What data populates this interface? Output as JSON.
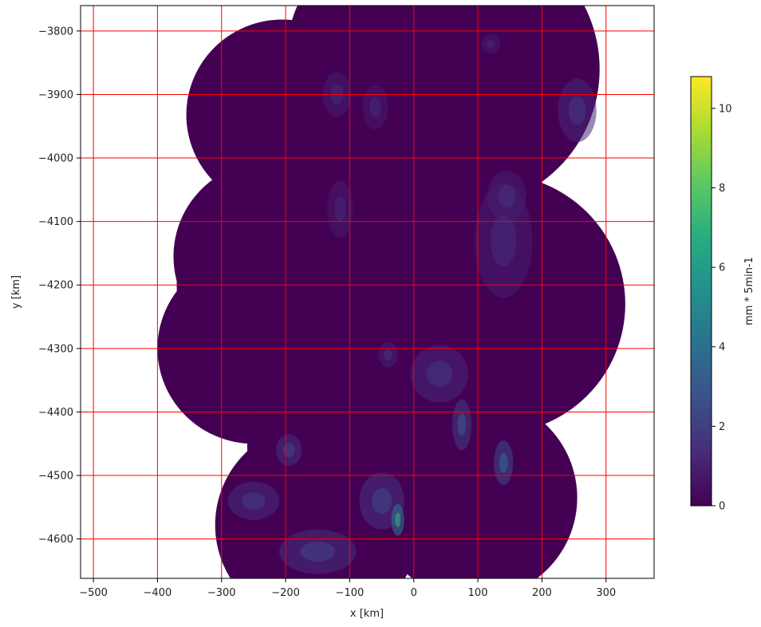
{
  "chart_data": {
    "type": "heatmap",
    "title": "",
    "xlabel": "x [km]",
    "ylabel": "y [km]",
    "xlim": [
      -520,
      375
    ],
    "ylim": [
      -4662,
      -3760
    ],
    "xticks": [
      -500,
      -400,
      -300,
      -200,
      -100,
      0,
      100,
      200,
      300
    ],
    "yticks": [
      -3800,
      -3900,
      -4000,
      -4100,
      -4200,
      -4300,
      -4400,
      -4500,
      -4600
    ],
    "grid": true,
    "grid_color": "#ff0000",
    "colormap": "viridis",
    "background_value_color": "#440154",
    "nodata_color": "#ffffff",
    "colorbar": {
      "label": "mm * 5min-1",
      "vmin": 0,
      "vmax": 10.8,
      "ticks": [
        0,
        2,
        4,
        6,
        8,
        10
      ],
      "placement": "right"
    },
    "coverage_circles": [
      {
        "cx": -205,
        "cy": -3932,
        "r": 150
      },
      {
        "cx": -225,
        "cy": -4155,
        "r": 150
      },
      {
        "cx": -250,
        "cy": -4300,
        "r": 150
      },
      {
        "cx": -150,
        "cy": -4578,
        "r": 160
      },
      {
        "cx": 95,
        "cy": -4535,
        "r": 160
      },
      {
        "cx": 125,
        "cy": -4230,
        "r": 205
      },
      {
        "cx": 70,
        "cy": -3860,
        "r": 220
      },
      {
        "cx": -55,
        "cy": -3820,
        "r": 140
      },
      {
        "cx": 5,
        "cy": -4280,
        "r": 200
      },
      {
        "cx": -150,
        "cy": -4200,
        "r": 220
      },
      {
        "cx": -60,
        "cy": -4450,
        "r": 200
      }
    ],
    "precip_patches": [
      {
        "x": -120,
        "y": -3900,
        "rx": 22,
        "ry": 35,
        "v": 0.9
      },
      {
        "x": -60,
        "y": -3920,
        "rx": 20,
        "ry": 35,
        "v": 0.8
      },
      {
        "x": 255,
        "y": -3925,
        "rx": 30,
        "ry": 50,
        "v": 1.2
      },
      {
        "x": 140,
        "y": -4130,
        "rx": 45,
        "ry": 90,
        "v": 0.9
      },
      {
        "x": 145,
        "y": -4060,
        "rx": 30,
        "ry": 40,
        "v": 1.0
      },
      {
        "x": 40,
        "y": -4340,
        "rx": 45,
        "ry": 45,
        "v": 1.2
      },
      {
        "x": 75,
        "y": -4420,
        "rx": 15,
        "ry": 40,
        "v": 2.0
      },
      {
        "x": -50,
        "y": -4540,
        "rx": 35,
        "ry": 45,
        "v": 1.6
      },
      {
        "x": -25,
        "y": -4570,
        "rx": 10,
        "ry": 25,
        "v": 4.5
      },
      {
        "x": -195,
        "y": -4460,
        "rx": 20,
        "ry": 25,
        "v": 1.5
      },
      {
        "x": -250,
        "y": -4540,
        "rx": 40,
        "ry": 30,
        "v": 1.4
      },
      {
        "x": -150,
        "y": -4620,
        "rx": 60,
        "ry": 35,
        "v": 1.5
      },
      {
        "x": 140,
        "y": -4480,
        "rx": 15,
        "ry": 35,
        "v": 2.5
      },
      {
        "x": -115,
        "y": -4080,
        "rx": 20,
        "ry": 45,
        "v": 0.8
      },
      {
        "x": 120,
        "y": -3820,
        "rx": 15,
        "ry": 15,
        "v": 0.8
      },
      {
        "x": -40,
        "y": -4310,
        "rx": 15,
        "ry": 20,
        "v": 1.0
      }
    ]
  }
}
